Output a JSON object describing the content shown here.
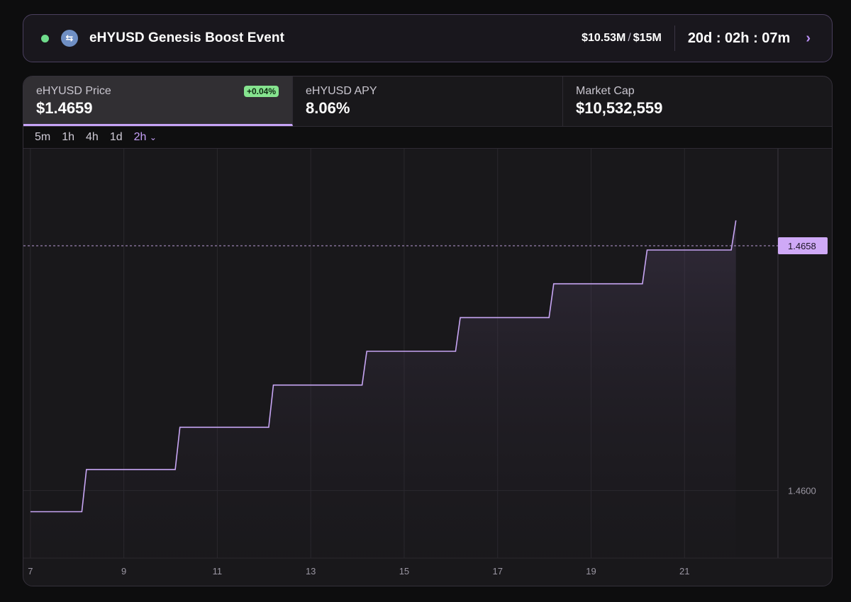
{
  "banner": {
    "title": "eHYUSD Genesis Boost Event",
    "raised": "$10.53M",
    "separator": "/",
    "cap": "$15M",
    "countdown": "20d : 02h : 07m",
    "status_color": "#6fdc8c",
    "token_icon": "swap-arrows-icon",
    "chevron_icon": "chevron-right-icon"
  },
  "stats": [
    {
      "label": "eHYUSD Price",
      "value": "$1.4659",
      "badge": "+0.04%"
    },
    {
      "label": "eHYUSD APY",
      "value": "8.06%"
    },
    {
      "label": "Market Cap",
      "value": "$10,532,559"
    }
  ],
  "intervals": {
    "options": [
      "5m",
      "1h",
      "4h",
      "1d"
    ],
    "selected": "2h",
    "accent": "#c5a0f7"
  },
  "chart_data": {
    "type": "line",
    "x_ticks": [
      "7",
      "9",
      "11",
      "13",
      "15",
      "17",
      "19",
      "21"
    ],
    "y_ticks": [
      "1.4600"
    ],
    "current_label": "1.4658",
    "current_value": 1.4658,
    "line_color": "#c8a6f5",
    "x": [
      7.0,
      8.1,
      8.2,
      10.1,
      10.2,
      12.1,
      12.2,
      14.1,
      14.2,
      16.1,
      16.2,
      18.1,
      18.2,
      20.1,
      20.2,
      22.0,
      22.1
    ],
    "values": [
      1.4595,
      1.4595,
      1.4605,
      1.4605,
      1.4615,
      1.4615,
      1.4625,
      1.4625,
      1.4633,
      1.4633,
      1.4641,
      1.4641,
      1.4649,
      1.4649,
      1.4657,
      1.4657,
      1.4664
    ],
    "xlim": [
      6.85,
      23.0
    ],
    "ylim": [
      1.4584,
      1.4681
    ],
    "grid": true
  }
}
